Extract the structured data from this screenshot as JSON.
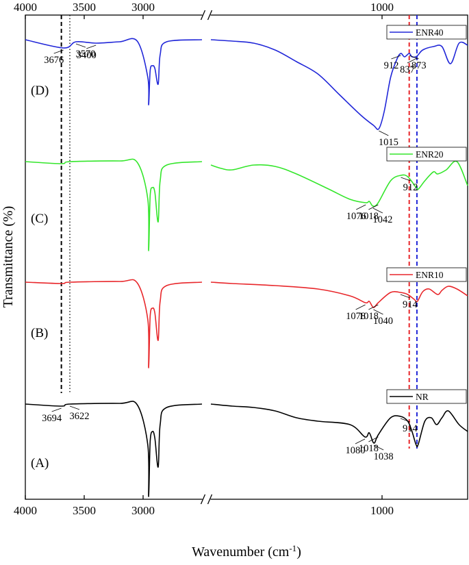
{
  "chart_data": {
    "type": "line",
    "xlabel": "Wavenumber (cm",
    "xlabel_sup": "-1",
    "xlabel_end": ")",
    "ylabel": "Transmittance (%)",
    "x_axis": {
      "reversed": true,
      "broken": true,
      "left_segment": {
        "range": [
          4000,
          2500
        ],
        "ticks": [
          "4000",
          "3500",
          "3000"
        ],
        "tick_values": [
          4000,
          3500,
          3000
        ]
      },
      "right_segment": {
        "range": [
          1800,
          600
        ],
        "ticks": [
          "1000"
        ],
        "tick_values": [
          1000
        ]
      }
    },
    "series": [
      {
        "name": "NR",
        "panel": "(A)",
        "color": "#000000",
        "left": [
          [
            4000,
            0
          ],
          [
            3694,
            -3
          ],
          [
            3622,
            0
          ],
          [
            3200,
            1
          ],
          [
            3050,
            -1
          ],
          [
            2960,
            -60
          ],
          [
            2953,
            -135
          ],
          [
            2940,
            -55
          ],
          [
            2920,
            -40
          ],
          [
            2900,
            -50
          ],
          [
            2872,
            -92
          ],
          [
            2855,
            -30
          ],
          [
            2800,
            -5
          ],
          [
            2500,
            0
          ]
        ],
        "right": [
          [
            1800,
            0
          ],
          [
            1700,
            -3
          ],
          [
            1600,
            -5
          ],
          [
            1500,
            -10
          ],
          [
            1400,
            -20
          ],
          [
            1300,
            -25
          ],
          [
            1150,
            -30
          ],
          [
            1080,
            -48
          ],
          [
            1060,
            -42
          ],
          [
            1038,
            -57
          ],
          [
            1018,
            -45
          ],
          [
            960,
            -20
          ],
          [
            914,
            -18
          ],
          [
            880,
            -25
          ],
          [
            860,
            -40
          ],
          [
            840,
            -60
          ],
          [
            830,
            -58
          ],
          [
            800,
            -25
          ],
          [
            770,
            -20
          ],
          [
            745,
            -30
          ],
          [
            720,
            -20
          ],
          [
            690,
            -10
          ],
          [
            640,
            -30
          ],
          [
            600,
            -40
          ]
        ],
        "annotations": [
          {
            "label": "3694",
            "x": 3694
          },
          {
            "label": "3622",
            "x": 3622
          },
          {
            "label": "1080",
            "x": 1080
          },
          {
            "label": "1038",
            "x": 1038
          },
          {
            "label": "1018",
            "x": 1018
          },
          {
            "label": "914",
            "x": 914
          }
        ]
      },
      {
        "name": "ENR10",
        "panel": "(B)",
        "color": "#e8262a",
        "left": [
          [
            4000,
            0
          ],
          [
            3694,
            -2
          ],
          [
            3620,
            0
          ],
          [
            3200,
            1
          ],
          [
            3050,
            -1
          ],
          [
            2960,
            -55
          ],
          [
            2953,
            -125
          ],
          [
            2940,
            -50
          ],
          [
            2920,
            -38
          ],
          [
            2900,
            -45
          ],
          [
            2872,
            -85
          ],
          [
            2855,
            -28
          ],
          [
            2800,
            -5
          ],
          [
            2500,
            0
          ]
        ],
        "right": [
          [
            1800,
            0
          ],
          [
            1700,
            -2
          ],
          [
            1500,
            -5
          ],
          [
            1300,
            -10
          ],
          [
            1150,
            -20
          ],
          [
            1078,
            -30
          ],
          [
            1060,
            -28
          ],
          [
            1040,
            -37
          ],
          [
            1018,
            -30
          ],
          [
            960,
            -15
          ],
          [
            914,
            -15
          ],
          [
            880,
            -18
          ],
          [
            850,
            -25
          ],
          [
            835,
            -28
          ],
          [
            810,
            -14
          ],
          [
            780,
            -10
          ],
          [
            740,
            -18
          ],
          [
            720,
            -12
          ],
          [
            690,
            -6
          ],
          [
            650,
            -10
          ],
          [
            600,
            -20
          ]
        ],
        "annotations": [
          {
            "label": "1078",
            "x": 1078
          },
          {
            "label": "1040",
            "x": 1040
          },
          {
            "label": "1018",
            "x": 1018
          },
          {
            "label": "914",
            "x": 914
          }
        ]
      },
      {
        "name": "ENR20",
        "panel": "(C)",
        "color": "#33e62a",
        "left": [
          [
            4000,
            0
          ],
          [
            3694,
            -3
          ],
          [
            3620,
            0
          ],
          [
            3200,
            1
          ],
          [
            3050,
            -1
          ],
          [
            2960,
            -55
          ],
          [
            2953,
            -130
          ],
          [
            2940,
            -50
          ],
          [
            2920,
            -38
          ],
          [
            2900,
            -45
          ],
          [
            2872,
            -88
          ],
          [
            2855,
            -28
          ],
          [
            2800,
            -5
          ],
          [
            2500,
            0
          ]
        ],
        "right": [
          [
            1800,
            -5
          ],
          [
            1750,
            -10
          ],
          [
            1700,
            -12
          ],
          [
            1600,
            -5
          ],
          [
            1500,
            -7
          ],
          [
            1400,
            -18
          ],
          [
            1250,
            -40
          ],
          [
            1150,
            -55
          ],
          [
            1076,
            -60
          ],
          [
            1060,
            -58
          ],
          [
            1042,
            -65
          ],
          [
            1018,
            -60
          ],
          [
            960,
            -28
          ],
          [
            912,
            -20
          ],
          [
            880,
            -22
          ],
          [
            840,
            -38
          ],
          [
            830,
            -40
          ],
          [
            800,
            -28
          ],
          [
            760,
            -15
          ],
          [
            740,
            -18
          ],
          [
            700,
            -12
          ],
          [
            650,
            0
          ],
          [
            600,
            -35
          ]
        ],
        "annotations": [
          {
            "label": "1076",
            "x": 1076
          },
          {
            "label": "1042",
            "x": 1042
          },
          {
            "label": "1018",
            "x": 1018
          },
          {
            "label": "912",
            "x": 912
          }
        ]
      },
      {
        "name": "ENR40",
        "panel": "(D)",
        "color": "#2026d8",
        "left": [
          [
            4000,
            0
          ],
          [
            3676,
            -12
          ],
          [
            3570,
            -3
          ],
          [
            3400,
            -5
          ],
          [
            3200,
            -3
          ],
          [
            3050,
            -2
          ],
          [
            2960,
            -55
          ],
          [
            2953,
            -95
          ],
          [
            2940,
            -45
          ],
          [
            2920,
            -38
          ],
          [
            2900,
            -42
          ],
          [
            2872,
            -65
          ],
          [
            2855,
            -22
          ],
          [
            2800,
            -3
          ],
          [
            2500,
            0
          ]
        ],
        "right": [
          [
            1800,
            0
          ],
          [
            1700,
            -2
          ],
          [
            1600,
            -5
          ],
          [
            1500,
            -15
          ],
          [
            1400,
            -32
          ],
          [
            1300,
            -50
          ],
          [
            1200,
            -80
          ],
          [
            1100,
            -110
          ],
          [
            1040,
            -125
          ],
          [
            1015,
            -130
          ],
          [
            990,
            -105
          ],
          [
            960,
            -55
          ],
          [
            930,
            -28
          ],
          [
            912,
            -20
          ],
          [
            895,
            -25
          ],
          [
            873,
            -20
          ],
          [
            860,
            -25
          ],
          [
            837,
            -24
          ],
          [
            810,
            -15
          ],
          [
            760,
            -10
          ],
          [
            720,
            -10
          ],
          [
            680,
            -35
          ],
          [
            640,
            -5
          ],
          [
            600,
            -8
          ]
        ],
        "annotations": [
          {
            "label": "3676",
            "x": 3676
          },
          {
            "label": "3570",
            "x": 3570
          },
          {
            "label": "3400",
            "x": 3400
          },
          {
            "label": "1015",
            "x": 1015
          },
          {
            "label": "912",
            "x": 912
          },
          {
            "label": "873",
            "x": 873
          },
          {
            "label": "837",
            "x": 837
          }
        ]
      }
    ],
    "reference_lines": [
      {
        "x": 3694,
        "style": "dashed",
        "color": "#000000"
      },
      {
        "x": 3622,
        "style": "dotted",
        "color": "#000000"
      },
      {
        "x": 873,
        "style": "dashed",
        "color": "#e8262a"
      },
      {
        "x": 837,
        "style": "dashed",
        "color": "#2026d8"
      }
    ],
    "legend": "right of each trace",
    "grid": false
  }
}
